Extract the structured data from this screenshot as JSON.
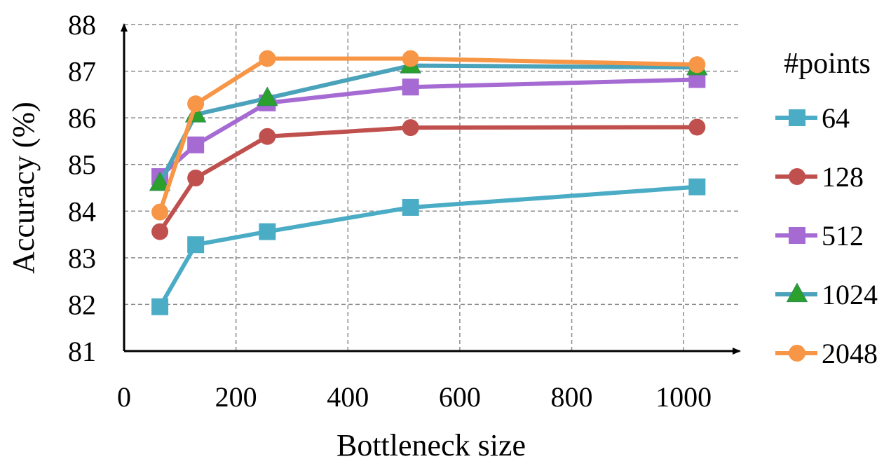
{
  "chart_data": {
    "type": "line",
    "xlabel": "Bottleneck size",
    "ylabel": "Accuracy (%)",
    "xlim": [
      0,
      1100
    ],
    "ylim": [
      81,
      88
    ],
    "xticks": [
      0,
      200,
      400,
      600,
      800,
      1000
    ],
    "yticks": [
      81,
      82,
      83,
      84,
      85,
      86,
      87,
      88
    ],
    "grid": true,
    "legend": {
      "title": "#points",
      "placement": "right"
    },
    "x": [
      64,
      128,
      256,
      512,
      1024
    ],
    "series": [
      {
        "name": "64",
        "color": "#4BACC6",
        "marker": "square",
        "values": [
          81.95,
          83.28,
          83.56,
          84.08,
          84.52
        ]
      },
      {
        "name": "128",
        "color": "#C0504D",
        "marker": "circle",
        "values": [
          83.56,
          84.71,
          85.6,
          85.79,
          85.8
        ]
      },
      {
        "name": "512",
        "color": "#A66BD3",
        "marker": "square",
        "values": [
          84.74,
          85.42,
          86.32,
          86.66,
          86.82
        ]
      },
      {
        "name": "1024",
        "color": "#4AA3BA",
        "marker": "triangle",
        "values": [
          84.6,
          86.07,
          86.42,
          87.12,
          87.08
        ]
      },
      {
        "name": "2048",
        "color": "#F79646",
        "marker": "circle",
        "values": [
          83.98,
          86.3,
          87.27,
          87.27,
          87.14
        ]
      }
    ]
  }
}
